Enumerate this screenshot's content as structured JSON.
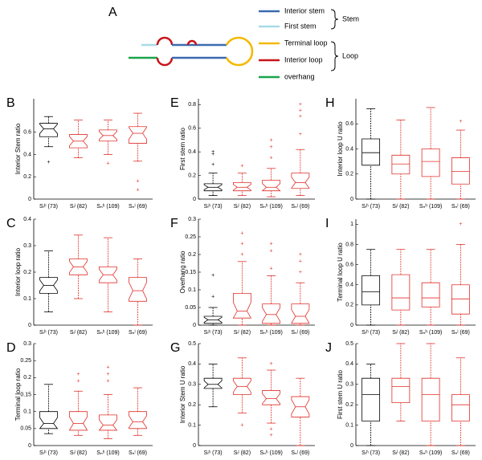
{
  "panel_a": {
    "label": "A",
    "legend": [
      "Interior stem",
      "First stem",
      "Terminal loop",
      "Interior loop",
      "overhang"
    ],
    "groups": [
      "Stem",
      "Loop"
    ]
  },
  "chart_data": [
    {
      "type": "box",
      "label": "B",
      "ylabel": "Interior Stem ratio",
      "notched": true,
      "categories": [
        "Sₗʰ (73)",
        "Sₗˡ (82)",
        "Sₙʰ (109)",
        "Sₙˡ (69)"
      ],
      "box_colors": [
        "#000000",
        "#e0302a",
        "#e0302a",
        "#e0302a"
      ],
      "ylim": [
        0,
        0.9
      ],
      "yticks": [
        0,
        0.2,
        0.4,
        0.6
      ],
      "boxes": [
        {
          "low": 0.47,
          "q1": 0.56,
          "median": 0.63,
          "q3": 0.68,
          "high": 0.74,
          "outliers": [
            0.33
          ]
        },
        {
          "low": 0.37,
          "q1": 0.46,
          "median": 0.52,
          "q3": 0.58,
          "high": 0.71,
          "outliers": []
        },
        {
          "low": 0.4,
          "q1": 0.52,
          "median": 0.57,
          "q3": 0.62,
          "high": 0.71,
          "outliers": [
            0.32
          ]
        },
        {
          "low": 0.34,
          "q1": 0.5,
          "median": 0.59,
          "q3": 0.65,
          "high": 0.77,
          "outliers": [
            0.16,
            0.08
          ]
        }
      ]
    },
    {
      "type": "box",
      "label": "C",
      "ylabel": "Interior loop ratio",
      "notched": true,
      "categories": [
        "Sₗʰ (73)",
        "Sₗˡ (82)",
        "Sₙʰ (109)",
        "Sₙˡ (69)"
      ],
      "box_colors": [
        "#000000",
        "#e0302a",
        "#e0302a",
        "#e0302a"
      ],
      "ylim": [
        0,
        0.4
      ],
      "yticks": [
        0,
        0.1,
        0.2,
        0.3,
        0.4
      ],
      "boxes": [
        {
          "low": 0.05,
          "q1": 0.12,
          "median": 0.15,
          "q3": 0.18,
          "high": 0.28,
          "outliers": []
        },
        {
          "low": 0.1,
          "q1": 0.19,
          "median": 0.22,
          "q3": 0.25,
          "high": 0.34,
          "outliers": []
        },
        {
          "low": 0.05,
          "q1": 0.16,
          "median": 0.19,
          "q3": 0.22,
          "high": 0.33,
          "outliers": []
        },
        {
          "low": 0,
          "q1": 0.09,
          "median": 0.13,
          "q3": 0.18,
          "high": 0.25,
          "outliers": []
        }
      ]
    },
    {
      "type": "box",
      "label": "D",
      "ylabel": "Terminal loop ratio",
      "notched": true,
      "categories": [
        "Sₗʰ (73)",
        "Sₗˡ (82)",
        "Sₙʰ (109)",
        "Sₙˡ (69)"
      ],
      "box_colors": [
        "#000000",
        "#e0302a",
        "#e0302a",
        "#e0302a"
      ],
      "ylim": [
        0,
        0.3
      ],
      "yticks": [
        0,
        0.05,
        0.1,
        0.15,
        0.2,
        0.25,
        0.3
      ],
      "boxes": [
        {
          "low": 0.035,
          "q1": 0.05,
          "median": 0.065,
          "q3": 0.1,
          "high": 0.18,
          "outliers": []
        },
        {
          "low": 0.03,
          "q1": 0.045,
          "median": 0.065,
          "q3": 0.1,
          "high": 0.16,
          "outliers": [
            0.19,
            0.21
          ]
        },
        {
          "low": 0.02,
          "q1": 0.045,
          "median": 0.06,
          "q3": 0.09,
          "high": 0.15,
          "outliers": [
            0.19,
            0.21,
            0.23
          ]
        },
        {
          "low": 0.03,
          "q1": 0.05,
          "median": 0.07,
          "q3": 0.1,
          "high": 0.17,
          "outliers": []
        }
      ]
    },
    {
      "type": "box",
      "label": "E",
      "ylabel": "First stem ratio",
      "notched": true,
      "categories": [
        "Sₗʰ (73)",
        "Sₗˡ (82)",
        "Sₙʰ (109)",
        "Sₙˡ (69)"
      ],
      "box_colors": [
        "#000000",
        "#e0302a",
        "#e0302a",
        "#e0302a"
      ],
      "ylim": [
        0,
        0.85
      ],
      "yticks": [
        0,
        0.2,
        0.4,
        0.6,
        0.8
      ],
      "boxes": [
        {
          "low": 0.03,
          "q1": 0.07,
          "median": 0.1,
          "q3": 0.13,
          "high": 0.22,
          "outliers": [
            0.29,
            0.38,
            0.4
          ]
        },
        {
          "low": 0.03,
          "q1": 0.07,
          "median": 0.1,
          "q3": 0.14,
          "high": 0.22,
          "outliers": [
            0.28
          ]
        },
        {
          "low": 0.02,
          "q1": 0.07,
          "median": 0.1,
          "q3": 0.16,
          "high": 0.26,
          "outliers": [
            0.35,
            0.44,
            0.5
          ]
        },
        {
          "low": 0.03,
          "q1": 0.09,
          "median": 0.14,
          "q3": 0.22,
          "high": 0.42,
          "outliers": [
            0.55,
            0.7,
            0.75,
            0.8
          ]
        }
      ]
    },
    {
      "type": "box",
      "label": "F",
      "ylabel": "Overhang ratio",
      "notched": true,
      "categories": [
        "Sₗʰ (73)",
        "Sₗˡ (82)",
        "Sₙʰ (109)",
        "Sₙˡ (69)"
      ],
      "box_colors": [
        "#000000",
        "#e0302a",
        "#e0302a",
        "#e0302a"
      ],
      "ylim": [
        0,
        0.3
      ],
      "yticks": [
        0,
        0.05,
        0.1,
        0.15,
        0.2,
        0.25,
        0.3
      ],
      "boxes": [
        {
          "low": 0,
          "q1": 0.005,
          "median": 0.015,
          "q3": 0.025,
          "high": 0.05,
          "outliers": [
            0.08,
            0.14
          ]
        },
        {
          "low": 0,
          "q1": 0.02,
          "median": 0.04,
          "q3": 0.09,
          "high": 0.18,
          "outliers": [
            0.2,
            0.23,
            0.26
          ]
        },
        {
          "low": 0,
          "q1": 0.005,
          "median": 0.03,
          "q3": 0.06,
          "high": 0.14,
          "outliers": [
            0.16,
            0.21,
            0.23
          ]
        },
        {
          "low": 0,
          "q1": 0.005,
          "median": 0.025,
          "q3": 0.06,
          "high": 0.12,
          "outliers": [
            0.15,
            0.18,
            0.2
          ]
        }
      ]
    },
    {
      "type": "box",
      "label": "G",
      "ylabel": "Interior Stem U ratio",
      "notched": true,
      "categories": [
        "Sₗʰ (73)",
        "Sₗˡ (82)",
        "Sₙʰ (109)",
        "Sₙˡ (69)"
      ],
      "box_colors": [
        "#000000",
        "#e0302a",
        "#e0302a",
        "#e0302a"
      ],
      "ylim": [
        0,
        0.5
      ],
      "yticks": [
        0,
        0.1,
        0.2,
        0.3,
        0.4,
        0.5
      ],
      "boxes": [
        {
          "low": 0.19,
          "q1": 0.28,
          "median": 0.3,
          "q3": 0.33,
          "high": 0.4,
          "outliers": []
        },
        {
          "low": 0.16,
          "q1": 0.25,
          "median": 0.29,
          "q3": 0.33,
          "high": 0.43,
          "outliers": [
            0.1
          ]
        },
        {
          "low": 0.11,
          "q1": 0.2,
          "median": 0.23,
          "q3": 0.27,
          "high": 0.37,
          "outliers": [
            0.05,
            0.08,
            0.4
          ]
        },
        {
          "low": 0,
          "q1": 0.14,
          "median": 0.19,
          "q3": 0.24,
          "high": 0.33,
          "outliers": []
        }
      ]
    },
    {
      "type": "box",
      "label": "H",
      "ylabel": "Interior loop U ratio",
      "notched": false,
      "categories": [
        "Sₗʰ (73)",
        "Sₗˡ (82)",
        "Sₙʰ (109)",
        "Sₙˡ (69)"
      ],
      "box_colors": [
        "#000000",
        "#e0302a",
        "#e0302a",
        "#e0302a"
      ],
      "ylim": [
        0,
        0.8
      ],
      "yticks": [
        0,
        0.2,
        0.4,
        0.6
      ],
      "boxes": [
        {
          "low": 0,
          "q1": 0.27,
          "median": 0.37,
          "q3": 0.48,
          "high": 0.72,
          "outliers": []
        },
        {
          "low": 0,
          "q1": 0.2,
          "median": 0.28,
          "q3": 0.35,
          "high": 0.63,
          "outliers": []
        },
        {
          "low": 0,
          "q1": 0.18,
          "median": 0.3,
          "q3": 0.4,
          "high": 0.73,
          "outliers": []
        },
        {
          "low": 0,
          "q1": 0.12,
          "median": 0.22,
          "q3": 0.33,
          "high": 0.55,
          "outliers": [
            0.62
          ]
        }
      ]
    },
    {
      "type": "box",
      "label": "I",
      "ylabel": "Terminal loop U ratio",
      "notched": false,
      "categories": [
        "Sₗʰ (73)",
        "Sₗˡ (82)",
        "Sₙʰ (109)",
        "Sₙˡ (69)"
      ],
      "box_colors": [
        "#000000",
        "#e0302a",
        "#e0302a",
        "#e0302a"
      ],
      "ylim": [
        0,
        1.05
      ],
      "yticks": [
        0,
        0.2,
        0.4,
        0.6,
        0.8,
        1
      ],
      "boxes": [
        {
          "low": 0,
          "q1": 0.2,
          "median": 0.33,
          "q3": 0.49,
          "high": 0.75,
          "outliers": []
        },
        {
          "low": 0,
          "q1": 0.15,
          "median": 0.27,
          "q3": 0.5,
          "high": 0.75,
          "outliers": []
        },
        {
          "low": 0,
          "q1": 0.18,
          "median": 0.27,
          "q3": 0.42,
          "high": 0.75,
          "outliers": []
        },
        {
          "low": 0,
          "q1": 0.11,
          "median": 0.26,
          "q3": 0.4,
          "high": 0.8,
          "outliers": [
            1
          ]
        }
      ]
    },
    {
      "type": "box",
      "label": "J",
      "ylabel": "First stem U ratio",
      "notched": false,
      "categories": [
        "Sₗʰ (73)",
        "Sₗˡ (82)",
        "Sₙʰ (109)",
        "Sₙˡ (69)"
      ],
      "box_colors": [
        "#000000",
        "#e0302a",
        "#e0302a",
        "#e0302a"
      ],
      "ylim": [
        0,
        0.5
      ],
      "yticks": [
        0,
        0.1,
        0.2,
        0.3,
        0.4,
        0.5
      ],
      "boxes": [
        {
          "low": 0,
          "q1": 0.12,
          "median": 0.25,
          "q3": 0.33,
          "high": 0.4,
          "outliers": []
        },
        {
          "low": 0.12,
          "q1": 0.21,
          "median": 0.29,
          "q3": 0.33,
          "high": 0.5,
          "outliers": []
        },
        {
          "low": 0,
          "q1": 0.12,
          "median": 0.25,
          "q3": 0.33,
          "high": 0.5,
          "outliers": []
        },
        {
          "low": 0,
          "q1": 0.12,
          "median": 0.2,
          "q3": 0.25,
          "high": 0.43,
          "outliers": []
        }
      ]
    }
  ]
}
